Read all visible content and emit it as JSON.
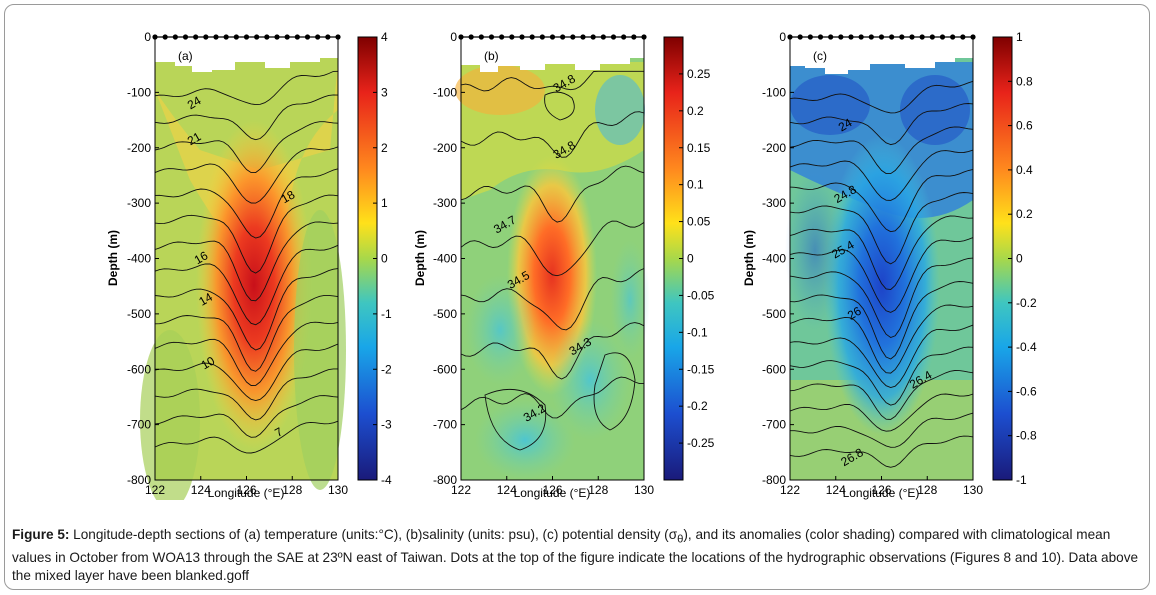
{
  "figure_label": "Figure 5:",
  "caption_before_sigma": " Longitude-depth sections of (a) temperature (units:°C), (b)salinity (units: psu), (c) potential density (σ",
  "sigma_subscript": "θ",
  "caption_after_sigma": "), and its anomalies (color shading) compared with climatological mean values in October from WOA13 through the SAE at 23ºN east of Taiwan. Dots at the top of the figure indicate the locations of the hydrographic observations (Figures 8 and 10). Data above the mixed layer have been blanked.goff",
  "chart_data": [
    {
      "type": "heatmap",
      "panel_label": "(a)",
      "xlabel": "Longitude (°E)",
      "ylabel": "Depth (m)",
      "xlim": [
        122,
        130
      ],
      "ylim": [
        -800,
        0
      ],
      "xticks": [
        "122",
        "124",
        "126",
        "128",
        "130"
      ],
      "yticks": [
        "0",
        "-100",
        "-200",
        "-300",
        "-400",
        "-500",
        "-600",
        "-700",
        "-800"
      ],
      "colorbar_ticks": [
        "4",
        "3",
        "2",
        "1",
        "0",
        "-1",
        "-2",
        "-3",
        "-4"
      ],
      "colorbar_range": [
        -4,
        4
      ],
      "anomaly_peak": 3.8,
      "anomaly_center": {
        "lon": 126.4,
        "depth": -450
      },
      "contour_labels": [
        {
          "text": "24",
          "lon": 123.8,
          "depth": -125
        },
        {
          "text": "21",
          "lon": 123.8,
          "depth": -190
        },
        {
          "text": "16",
          "lon": 124.1,
          "depth": -405
        },
        {
          "text": "14",
          "lon": 124.3,
          "depth": -480
        },
        {
          "text": "10",
          "lon": 124.4,
          "depth": -595
        },
        {
          "text": "18",
          "lon": 127.9,
          "depth": -295
        },
        {
          "text": "7",
          "lon": 127.5,
          "depth": -720
        }
      ]
    },
    {
      "type": "heatmap",
      "panel_label": "(b)",
      "xlabel": "Longitude (°E)",
      "ylabel": "Depth (m)",
      "xlim": [
        122,
        130
      ],
      "ylim": [
        -800,
        0
      ],
      "xticks": [
        "122",
        "124",
        "126",
        "128",
        "130"
      ],
      "yticks": [
        "0",
        "-100",
        "-200",
        "-300",
        "-400",
        "-500",
        "-600",
        "-700",
        "-800"
      ],
      "colorbar_ticks": [
        "0.25",
        "0.2",
        "0.15",
        "0.1",
        "0.05",
        "0",
        "-0.05",
        "-0.1",
        "-0.15",
        "-0.2",
        "-0.25"
      ],
      "colorbar_range": [
        -0.3,
        0.3
      ],
      "anomaly_peak": 0.24,
      "anomaly_center": {
        "lon": 126.4,
        "depth": -445
      },
      "contour_labels": [
        {
          "text": "34.8",
          "lon": 126.6,
          "depth": -90
        },
        {
          "text": "34.8",
          "lon": 126.6,
          "depth": -210
        },
        {
          "text": "34.7",
          "lon": 124.0,
          "depth": -345
        },
        {
          "text": "34.5",
          "lon": 124.6,
          "depth": -445
        },
        {
          "text": "34.3",
          "lon": 127.3,
          "depth": -565
        },
        {
          "text": "34.2",
          "lon": 125.3,
          "depth": -685
        }
      ]
    },
    {
      "type": "heatmap",
      "panel_label": "(c)",
      "xlabel": "Longitude (°E)",
      "ylabel": "Depth (m)",
      "xlim": [
        122,
        130
      ],
      "ylim": [
        -800,
        0
      ],
      "xticks": [
        "122",
        "124",
        "126",
        "128",
        "130"
      ],
      "yticks": [
        "0",
        "-100",
        "-200",
        "-300",
        "-400",
        "-500",
        "-600",
        "-700",
        "-800"
      ],
      "colorbar_ticks": [
        "1",
        "0.8",
        "0.6",
        "0.4",
        "0.2",
        "0",
        "-0.2",
        "-0.4",
        "-0.6",
        "-0.8",
        "-1"
      ],
      "colorbar_range": [
        -1,
        1
      ],
      "anomaly_peak": -0.65,
      "anomaly_center": {
        "lon": 126.4,
        "depth": -440
      },
      "contour_labels": [
        {
          "text": "24",
          "lon": 124.5,
          "depth": -165
        },
        {
          "text": "24.8",
          "lon": 124.5,
          "depth": -290
        },
        {
          "text": "25.4",
          "lon": 124.4,
          "depth": -390
        },
        {
          "text": "26",
          "lon": 124.9,
          "depth": -505
        },
        {
          "text": "26.4",
          "lon": 127.8,
          "depth": -625
        },
        {
          "text": "26.8",
          "lon": 124.8,
          "depth": -765
        }
      ]
    }
  ]
}
